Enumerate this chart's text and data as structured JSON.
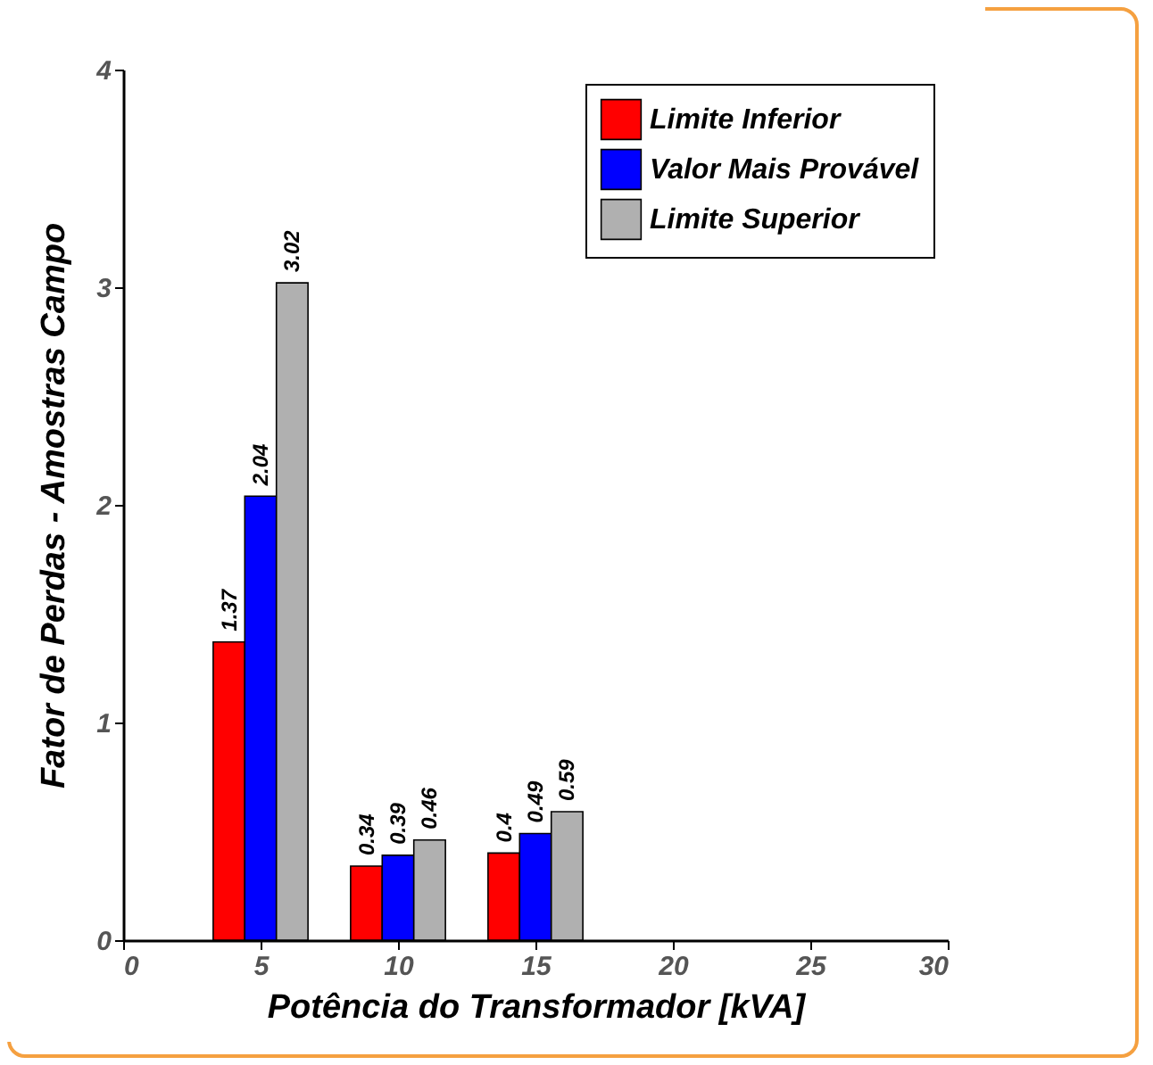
{
  "chart_data": {
    "type": "bar",
    "xlabel": "Potência do Transformador [kVA]",
    "ylabel": "Fator de Perdas - Amostras Campo",
    "x": [
      5,
      10,
      15
    ],
    "series": [
      {
        "name": "Limite Inferior",
        "color": "#ff0000",
        "values": [
          1.37,
          0.34,
          0.4
        ]
      },
      {
        "name": "Valor Mais Provável",
        "color": "#0000ff",
        "values": [
          2.04,
          0.39,
          0.49
        ]
      },
      {
        "name": "Limite Superior",
        "color": "#b0b0b0",
        "values": [
          3.02,
          0.46,
          0.59
        ]
      }
    ],
    "xlim": [
      0,
      30
    ],
    "xticks": [
      0,
      5,
      10,
      15,
      20,
      25,
      30
    ],
    "ylim": [
      0,
      4
    ],
    "yticks": [
      0,
      1,
      2,
      3,
      4
    ],
    "data_labels": true,
    "legend": "top right",
    "grid": false
  }
}
